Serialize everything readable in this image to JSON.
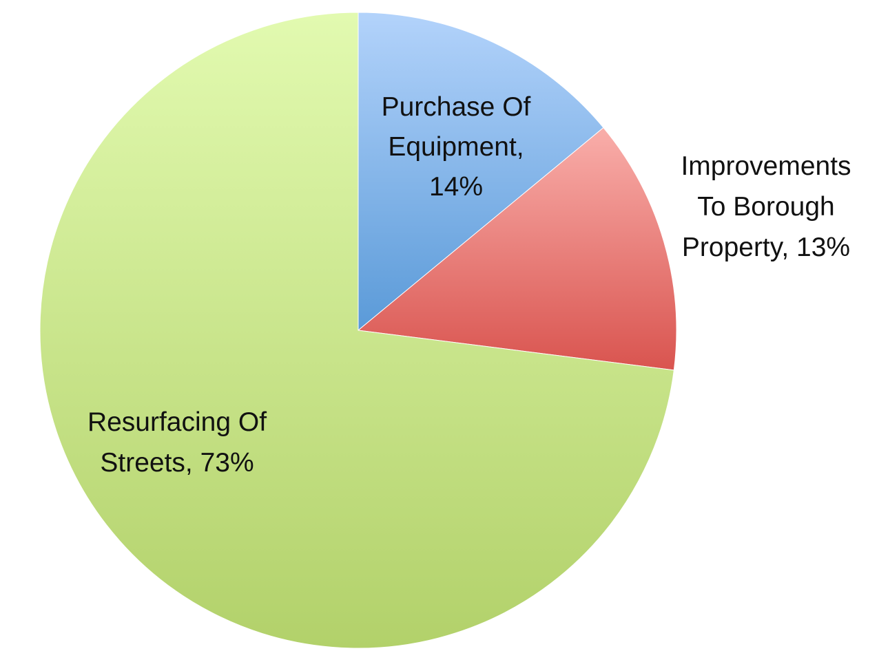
{
  "chart_data": {
    "type": "pie",
    "title": "",
    "start": "12 o'clock",
    "direction": "clockwise",
    "slices": [
      {
        "name": "Purchase Of Equipment",
        "value": 14,
        "label_lines": [
          "Purchase Of",
          "Equipment,",
          "14%"
        ],
        "color_light": "#b3d3fb",
        "color_dark": "#5a9ad8"
      },
      {
        "name": "Improvements To Borough Property",
        "value": 13,
        "label_lines": [
          "Improvements",
          "To Borough",
          "Property, 13%"
        ],
        "color_light": "#f9aeaa",
        "color_dark": "#d9544f"
      },
      {
        "name": "Resurfacing Of Streets",
        "value": 73,
        "label_lines": [
          "Resurfacing Of",
          "Streets, 73%"
        ],
        "color_light": "#e2fab0",
        "color_dark": "#b2d16a"
      }
    ]
  }
}
